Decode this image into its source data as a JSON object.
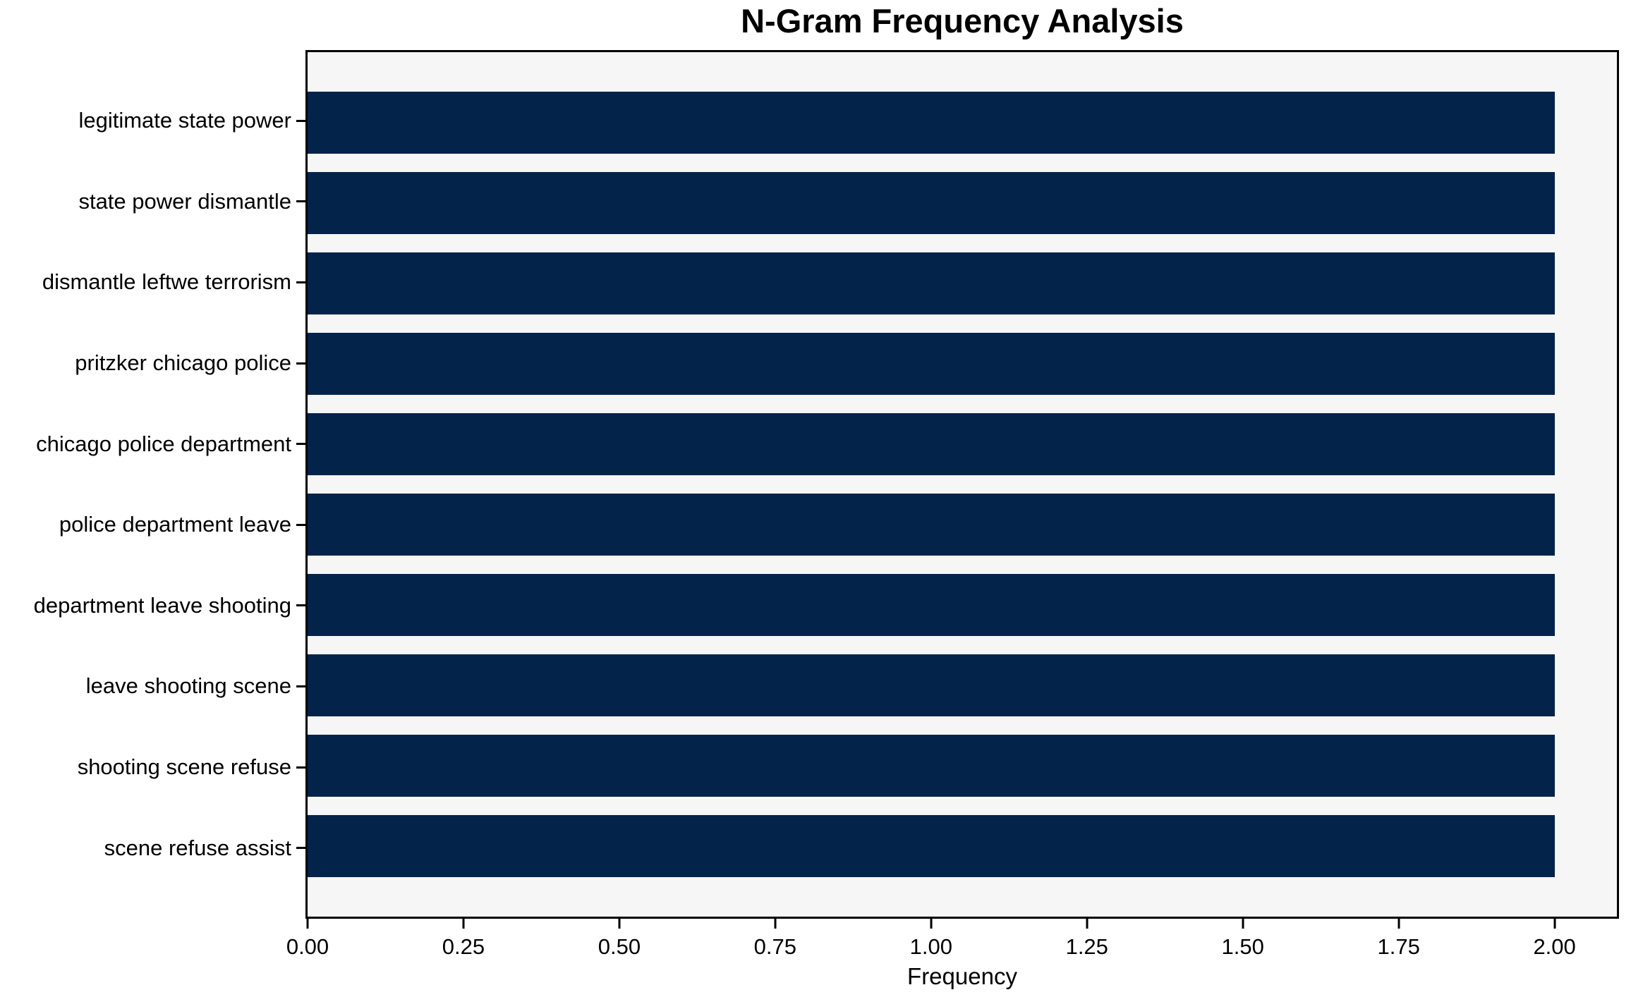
{
  "chart_data": {
    "type": "bar",
    "orientation": "horizontal",
    "title": "N-Gram Frequency Analysis",
    "xlabel": "Frequency",
    "ylabel": "",
    "categories": [
      "legitimate state power",
      "state power dismantle",
      "dismantle leftwe terrorism",
      "pritzker chicago police",
      "chicago police department",
      "police department leave",
      "department leave shooting",
      "leave shooting scene",
      "shooting scene refuse",
      "scene refuse assist"
    ],
    "values": [
      2,
      2,
      2,
      2,
      2,
      2,
      2,
      2,
      2,
      2
    ],
    "xlim": [
      0,
      2.1
    ],
    "xticks": [
      {
        "value": 0.0,
        "label": "0.00"
      },
      {
        "value": 0.25,
        "label": "0.25"
      },
      {
        "value": 0.5,
        "label": "0.50"
      },
      {
        "value": 0.75,
        "label": "0.75"
      },
      {
        "value": 1.0,
        "label": "1.00"
      },
      {
        "value": 1.25,
        "label": "1.25"
      },
      {
        "value": 1.5,
        "label": "1.50"
      },
      {
        "value": 1.75,
        "label": "1.75"
      },
      {
        "value": 2.0,
        "label": "2.00"
      }
    ],
    "grid": false,
    "legend": null,
    "colors": {
      "bar": "#03234b",
      "plot_background": "#f6f6f6",
      "figure_background": "#ffffff",
      "axis": "#000000",
      "text": "#000000"
    }
  }
}
